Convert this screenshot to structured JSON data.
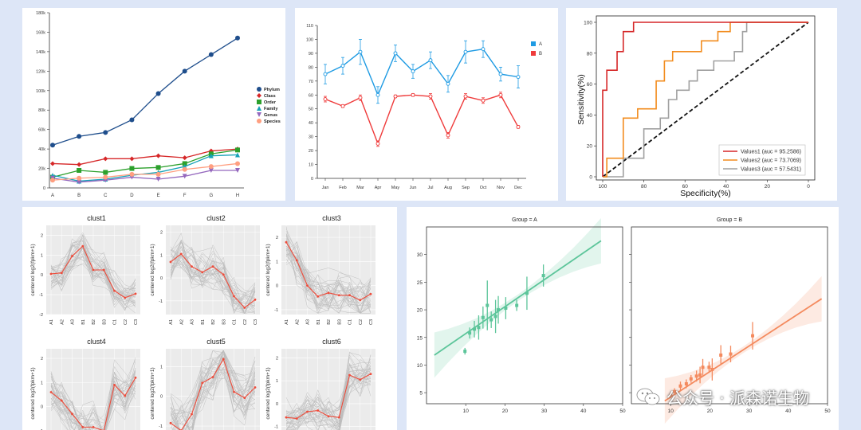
{
  "watermark": {
    "text": "公众号 · 派森诺生物",
    "icon": "wechat-icon"
  },
  "chart_data": [
    {
      "id": "p1",
      "type": "line",
      "categories": [
        "A",
        "B",
        "C",
        "D",
        "E",
        "F",
        "G",
        "H"
      ],
      "ylim": [
        0,
        180000
      ],
      "yticks": [
        "0",
        "20k",
        "40k",
        "60k",
        "80k",
        "100k",
        "120k",
        "140k",
        "160k",
        "180k"
      ],
      "legend_position": "right",
      "series": [
        {
          "name": "Phylum",
          "color": "#1f4e8c",
          "marker": "circle",
          "values": [
            44000,
            53000,
            57000,
            70000,
            97000,
            120000,
            137000,
            154000
          ]
        },
        {
          "name": "Class",
          "color": "#d62728",
          "marker": "diamond",
          "values": [
            25000,
            24000,
            30000,
            30000,
            33000,
            31000,
            38000,
            40000
          ]
        },
        {
          "name": "Order",
          "color": "#2ca02c",
          "marker": "square",
          "values": [
            11000,
            18000,
            16000,
            20000,
            21000,
            25000,
            35000,
            39000
          ]
        },
        {
          "name": "Family",
          "color": "#17a2b8",
          "marker": "triangle",
          "values": [
            13000,
            7000,
            9000,
            13000,
            16000,
            22000,
            33000,
            34000
          ]
        },
        {
          "name": "Genus",
          "color": "#9467bd",
          "marker": "tri-down",
          "values": [
            10000,
            6000,
            8000,
            11000,
            9000,
            12000,
            18000,
            18000
          ]
        },
        {
          "name": "Species",
          "color": "#ff9f80",
          "marker": "circle",
          "values": [
            8000,
            10000,
            11000,
            14000,
            14000,
            19000,
            22000,
            25000
          ]
        }
      ]
    },
    {
      "id": "p2",
      "type": "line",
      "categories": [
        "Jan",
        "Feb",
        "Mar",
        "Apr",
        "May",
        "Jun",
        "Jul",
        "Aug",
        "Sep",
        "Oct",
        "Nov",
        "Dec"
      ],
      "ylim": [
        0,
        110
      ],
      "yticks": [
        "0",
        "10",
        "20",
        "30",
        "40",
        "50",
        "60",
        "70",
        "80",
        "90",
        "100",
        "110"
      ],
      "legend_position": "right",
      "series": [
        {
          "name": "A",
          "color": "#1f9be3",
          "values": [
            75,
            81,
            91,
            60,
            90,
            77,
            85,
            68,
            91,
            93,
            75,
            73
          ],
          "errors": [
            7,
            6,
            9,
            6,
            6,
            5,
            6,
            6,
            8,
            6,
            5,
            8
          ]
        },
        {
          "name": "B",
          "color": "#ef3b3b",
          "values": [
            57,
            52,
            58,
            25,
            59,
            60,
            59,
            31,
            59,
            56,
            60,
            37
          ],
          "errors": [
            2,
            1,
            2,
            2,
            1,
            1,
            2,
            2,
            2,
            2,
            2,
            1
          ]
        }
      ]
    },
    {
      "id": "p3",
      "type": "line",
      "xlabel": "Specificity(%)",
      "ylabel": "Sensitivity(%)",
      "xlim": [
        100,
        0
      ],
      "ylim": [
        0,
        100
      ],
      "xticks": [
        "100",
        "80",
        "60",
        "40",
        "20",
        "0"
      ],
      "yticks": [
        "0",
        "20",
        "40",
        "60",
        "80",
        "100"
      ],
      "legend_position": "bottom-right",
      "series": [
        {
          "name": "Values1 (auc = 95.2586)",
          "color": "#d62728",
          "points": [
            [
              100,
              0
            ],
            [
              100,
              56
            ],
            [
              98,
              56
            ],
            [
              98,
              69
            ],
            [
              93,
              69
            ],
            [
              93,
              81
            ],
            [
              90,
              81
            ],
            [
              90,
              94
            ],
            [
              85,
              94
            ],
            [
              85,
              100
            ],
            [
              0,
              100
            ]
          ]
        },
        {
          "name": "Values2 (auc = 73.7069)",
          "color": "#f28c1e",
          "points": [
            [
              100,
              0
            ],
            [
              98,
              0
            ],
            [
              98,
              12
            ],
            [
              90,
              12
            ],
            [
              90,
              38
            ],
            [
              83,
              38
            ],
            [
              83,
              44
            ],
            [
              74,
              44
            ],
            [
              74,
              62
            ],
            [
              70,
              62
            ],
            [
              70,
              75
            ],
            [
              66,
              75
            ],
            [
              66,
              81
            ],
            [
              52,
              81
            ],
            [
              52,
              88
            ],
            [
              44,
              88
            ],
            [
              44,
              94
            ],
            [
              38,
              94
            ],
            [
              38,
              100
            ],
            [
              0,
              100
            ]
          ]
        },
        {
          "name": "Values3 (auc = 57.5431)",
          "color": "#a0a0a0",
          "points": [
            [
              100,
              0
            ],
            [
              90,
              0
            ],
            [
              90,
              12
            ],
            [
              80,
              12
            ],
            [
              80,
              31
            ],
            [
              72,
              31
            ],
            [
              72,
              38
            ],
            [
              68,
              38
            ],
            [
              68,
              50
            ],
            [
              64,
              50
            ],
            [
              64,
              56
            ],
            [
              58,
              56
            ],
            [
              58,
              62
            ],
            [
              54,
              62
            ],
            [
              54,
              69
            ],
            [
              46,
              69
            ],
            [
              46,
              75
            ],
            [
              36,
              75
            ],
            [
              36,
              81
            ],
            [
              32,
              81
            ],
            [
              32,
              94
            ],
            [
              30,
              94
            ],
            [
              30,
              100
            ],
            [
              0,
              100
            ]
          ]
        }
      ],
      "diagonal": true
    },
    {
      "id": "p4",
      "type": "line",
      "ylabel": "centered log2(fpkm+1)",
      "categories": [
        "A1",
        "A2",
        "A3",
        "B1",
        "B2",
        "B3",
        "C1",
        "C2",
        "C3"
      ],
      "panels": [
        {
          "title": "clust1",
          "ylim": [
            -2,
            2.5
          ],
          "yticks": [
            -2,
            -1,
            0,
            1,
            2
          ],
          "values": [
            0.05,
            0.1,
            0.95,
            1.45,
            0.25,
            0.25,
            -0.8,
            -1.15,
            -0.95
          ]
        },
        {
          "title": "clust2",
          "ylim": [
            -1.6,
            2.3
          ],
          "yticks": [
            -1,
            0,
            1,
            2
          ],
          "values": [
            0.7,
            1.05,
            0.5,
            0.25,
            0.5,
            0.15,
            -0.8,
            -1.3,
            -0.95
          ]
        },
        {
          "title": "clust3",
          "ylim": [
            -1.2,
            2.5
          ],
          "yticks": [
            -1,
            0,
            1,
            2
          ],
          "values": [
            1.8,
            1.05,
            0.0,
            -0.45,
            -0.3,
            -0.4,
            -0.4,
            -0.6,
            -0.35
          ]
        },
        {
          "title": "clust4",
          "ylim": [
            -1.3,
            2.4
          ],
          "yticks": [
            -1,
            0,
            1,
            2
          ],
          "values": [
            0.6,
            0.25,
            -0.3,
            -0.85,
            -0.85,
            -1.0,
            0.9,
            0.45,
            1.2
          ]
        },
        {
          "title": "clust5",
          "ylim": [
            -1.4,
            1.6
          ],
          "yticks": [
            -1,
            0,
            1
          ],
          "values": [
            -0.9,
            -1.15,
            -0.6,
            0.45,
            0.65,
            1.25,
            0.15,
            -0.05,
            0.3
          ]
        },
        {
          "title": "clust6",
          "ylim": [
            -1.5,
            2.4
          ],
          "yticks": [
            -1,
            0,
            1,
            2
          ],
          "values": [
            -0.6,
            -0.65,
            -0.35,
            -0.3,
            -0.55,
            -0.6,
            1.25,
            1.05,
            1.3
          ]
        }
      ]
    },
    {
      "id": "p5",
      "type": "scatter",
      "xlim": [
        0,
        50
      ],
      "ylim": [
        3,
        35
      ],
      "xticks": [
        10,
        20,
        30,
        40,
        50
      ],
      "yticks": [
        5,
        10,
        15,
        20,
        25,
        30
      ],
      "facets": [
        {
          "title": "Group = A",
          "color": "#5cc59a",
          "fit": {
            "x0": 2,
            "y0": 11.8,
            "x1": 44.5,
            "y1": 32.5
          },
          "points": [
            [
              9.8,
              12.5,
              0.6
            ],
            [
              11,
              15.8,
              1
            ],
            [
              12.2,
              16.5,
              1.5
            ],
            [
              13.3,
              16.8,
              2.2
            ],
            [
              14.4,
              18.6,
              2
            ],
            [
              15.5,
              20.8,
              4.5
            ],
            [
              16.5,
              18.2,
              1.5
            ],
            [
              17.6,
              18.8,
              3
            ],
            [
              18.3,
              20,
              2.5
            ],
            [
              20.2,
              20.3,
              2
            ],
            [
              23,
              20.8,
              1
            ],
            [
              25.6,
              23,
              3
            ],
            [
              29.8,
              26.2,
              2
            ]
          ]
        },
        {
          "title": "Group = B",
          "color": "#f48a5e",
          "fit": {
            "x0": 8.5,
            "y0": 3.5,
            "x1": 48.5,
            "y1": 22
          },
          "points": [
            [
              10,
              4.5,
              0.5
            ],
            [
              11,
              5.2,
              0.6
            ],
            [
              12.5,
              6.2,
              0.8
            ],
            [
              14,
              6.6,
              0.8
            ],
            [
              15.2,
              7.5,
              0.7
            ],
            [
              16.6,
              8,
              1
            ],
            [
              17.5,
              8.2,
              1.5
            ],
            [
              18.2,
              9.6,
              1.5
            ],
            [
              19.8,
              9.6,
              1
            ],
            [
              20.6,
              9.2,
              2
            ],
            [
              22.8,
              11.8,
              1.8
            ],
            [
              25.3,
              12,
              1.5
            ],
            [
              30.9,
              15.3,
              2.5
            ]
          ]
        }
      ]
    }
  ]
}
